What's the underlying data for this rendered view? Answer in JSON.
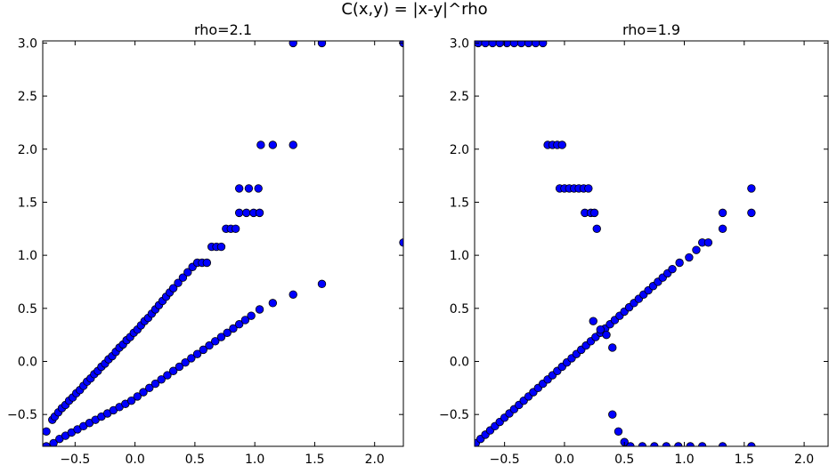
{
  "figure": {
    "suptitle": "C(x,y) = |x-y|^rho"
  },
  "colors": {
    "marker_fill": "#0000ff",
    "marker_edge": "#000000",
    "axes": "#000000",
    "background": "#ffffff"
  },
  "chart_data": [
    {
      "type": "scatter",
      "title": "rho=2.1",
      "xlabel": "",
      "ylabel": "",
      "xlim": [
        -0.77,
        2.24
      ],
      "ylim": [
        -0.8,
        3.02
      ],
      "xticks": [
        -0.5,
        0.0,
        0.5,
        1.0,
        1.5,
        2.0
      ],
      "xtick_labels": [
        "−0.5",
        "0.0",
        "0.5",
        "1.0",
        "1.5",
        "2.0"
      ],
      "yticks": [
        -0.5,
        0.0,
        0.5,
        1.0,
        1.5,
        2.0,
        2.5,
        3.0
      ],
      "ytick_labels": [
        "−0.5",
        "0.0",
        "0.5",
        "1.0",
        "1.5",
        "2.0",
        "2.5",
        "3.0"
      ],
      "grid": false,
      "series": [
        {
          "points": [
            [
              -0.74,
              -0.66
            ],
            [
              -0.69,
              -0.55
            ],
            [
              -0.67,
              -0.52
            ],
            [
              -0.64,
              -0.48
            ],
            [
              -0.61,
              -0.44
            ],
            [
              -0.58,
              -0.41
            ],
            [
              -0.55,
              -0.37
            ],
            [
              -0.52,
              -0.34
            ],
            [
              -0.49,
              -0.3
            ],
            [
              -0.46,
              -0.27
            ],
            [
              -0.43,
              -0.23
            ],
            [
              -0.4,
              -0.19
            ],
            [
              -0.37,
              -0.16
            ],
            [
              -0.34,
              -0.12
            ],
            [
              -0.31,
              -0.09
            ],
            [
              -0.28,
              -0.05
            ],
            [
              -0.25,
              -0.02
            ],
            [
              -0.22,
              0.02
            ],
            [
              -0.19,
              0.05
            ],
            [
              -0.16,
              0.09
            ],
            [
              -0.13,
              0.13
            ],
            [
              -0.1,
              0.16
            ],
            [
              -0.07,
              0.2
            ],
            [
              -0.04,
              0.23
            ],
            [
              -0.01,
              0.27
            ],
            [
              0.02,
              0.3
            ],
            [
              0.05,
              0.34
            ],
            [
              0.08,
              0.38
            ],
            [
              0.11,
              0.41
            ],
            [
              0.14,
              0.45
            ],
            [
              0.17,
              0.49
            ],
            [
              0.2,
              0.53
            ],
            [
              0.23,
              0.57
            ],
            [
              0.26,
              0.61
            ],
            [
              0.29,
              0.65
            ],
            [
              0.32,
              0.69
            ],
            [
              0.36,
              0.74
            ],
            [
              0.4,
              0.79
            ],
            [
              0.44,
              0.84
            ],
            [
              0.48,
              0.89
            ],
            [
              0.52,
              0.93
            ],
            [
              0.56,
              0.93
            ],
            [
              0.6,
              0.93
            ],
            [
              0.64,
              1.08
            ],
            [
              0.68,
              1.08
            ],
            [
              0.72,
              1.08
            ],
            [
              0.76,
              1.25
            ],
            [
              0.8,
              1.25
            ],
            [
              0.84,
              1.25
            ],
            [
              0.87,
              1.4
            ],
            [
              0.93,
              1.4
            ],
            [
              0.99,
              1.4
            ],
            [
              1.04,
              1.4
            ],
            [
              0.87,
              1.63
            ],
            [
              0.95,
              1.63
            ],
            [
              1.03,
              1.63
            ],
            [
              1.05,
              2.04
            ],
            [
              1.15,
              2.04
            ],
            [
              1.32,
              2.04
            ],
            [
              1.32,
              3.0
            ],
            [
              1.56,
              3.0
            ],
            [
              2.24,
              3.0
            ],
            [
              2.24,
              1.12
            ],
            [
              -0.74,
              -0.8
            ],
            [
              -0.68,
              -0.77
            ],
            [
              -0.63,
              -0.73
            ],
            [
              -0.58,
              -0.7
            ],
            [
              -0.53,
              -0.67
            ],
            [
              -0.48,
              -0.64
            ],
            [
              -0.43,
              -0.61
            ],
            [
              -0.38,
              -0.58
            ],
            [
              -0.33,
              -0.55
            ],
            [
              -0.28,
              -0.52
            ],
            [
              -0.23,
              -0.49
            ],
            [
              -0.18,
              -0.46
            ],
            [
              -0.13,
              -0.43
            ],
            [
              -0.08,
              -0.4
            ],
            [
              -0.03,
              -0.37
            ],
            [
              0.02,
              -0.33
            ],
            [
              0.07,
              -0.29
            ],
            [
              0.12,
              -0.25
            ],
            [
              0.17,
              -0.21
            ],
            [
              0.22,
              -0.17
            ],
            [
              0.27,
              -0.13
            ],
            [
              0.32,
              -0.09
            ],
            [
              0.37,
              -0.05
            ],
            [
              0.42,
              -0.01
            ],
            [
              0.47,
              0.03
            ],
            [
              0.52,
              0.07
            ],
            [
              0.57,
              0.11
            ],
            [
              0.62,
              0.15
            ],
            [
              0.67,
              0.19
            ],
            [
              0.72,
              0.23
            ],
            [
              0.77,
              0.27
            ],
            [
              0.82,
              0.31
            ],
            [
              0.87,
              0.35
            ],
            [
              0.92,
              0.39
            ],
            [
              0.97,
              0.43
            ],
            [
              1.04,
              0.49
            ],
            [
              1.15,
              0.55
            ],
            [
              1.32,
              0.63
            ],
            [
              1.56,
              0.73
            ]
          ]
        }
      ]
    },
    {
      "type": "scatter",
      "title": "rho=1.9",
      "xlabel": "",
      "ylabel": "",
      "xlim": [
        -0.75,
        2.2
      ],
      "ylim": [
        -0.8,
        3.02
      ],
      "xticks": [
        -0.5,
        0.0,
        0.5,
        1.0,
        1.5,
        2.0
      ],
      "xtick_labels": [
        "−0.5",
        "0.0",
        "0.5",
        "1.0",
        "1.5",
        "2.0"
      ],
      "yticks": [
        -0.5,
        0.0,
        0.5,
        1.0,
        1.5,
        2.0,
        2.5,
        3.0
      ],
      "ytick_labels": [
        "−0.5",
        "0.0",
        "0.5",
        "1.0",
        "1.5",
        "2.0",
        "2.5",
        "3.0"
      ],
      "grid": false,
      "series": [
        {
          "points": [
            [
              -0.74,
              -0.77
            ],
            [
              -0.7,
              -0.73
            ],
            [
              -0.66,
              -0.69
            ],
            [
              -0.62,
              -0.65
            ],
            [
              -0.58,
              -0.61
            ],
            [
              -0.54,
              -0.57
            ],
            [
              -0.5,
              -0.53
            ],
            [
              -0.46,
              -0.49
            ],
            [
              -0.42,
              -0.45
            ],
            [
              -0.38,
              -0.41
            ],
            [
              -0.34,
              -0.37
            ],
            [
              -0.3,
              -0.33
            ],
            [
              -0.26,
              -0.29
            ],
            [
              -0.22,
              -0.25
            ],
            [
              -0.18,
              -0.21
            ],
            [
              -0.14,
              -0.17
            ],
            [
              -0.1,
              -0.13
            ],
            [
              -0.06,
              -0.09
            ],
            [
              -0.02,
              -0.05
            ],
            [
              0.02,
              -0.01
            ],
            [
              0.06,
              0.03
            ],
            [
              0.1,
              0.07
            ],
            [
              0.14,
              0.11
            ],
            [
              0.18,
              0.15
            ],
            [
              0.22,
              0.19
            ],
            [
              0.26,
              0.23
            ],
            [
              0.3,
              0.27
            ],
            [
              0.34,
              0.31
            ],
            [
              0.38,
              0.35
            ],
            [
              0.42,
              0.39
            ],
            [
              0.46,
              0.43
            ],
            [
              0.5,
              0.47
            ],
            [
              0.54,
              0.51
            ],
            [
              0.58,
              0.55
            ],
            [
              0.62,
              0.59
            ],
            [
              0.66,
              0.63
            ],
            [
              0.7,
              0.67
            ],
            [
              0.74,
              0.71
            ],
            [
              0.78,
              0.75
            ],
            [
              0.82,
              0.79
            ],
            [
              0.86,
              0.83
            ],
            [
              0.9,
              0.87
            ],
            [
              0.96,
              0.93
            ],
            [
              1.04,
              0.98
            ],
            [
              1.1,
              1.05
            ],
            [
              1.15,
              1.12
            ],
            [
              1.2,
              1.12
            ],
            [
              1.32,
              1.25
            ],
            [
              1.32,
              1.4
            ],
            [
              1.56,
              1.4
            ],
            [
              1.56,
              1.63
            ],
            [
              0.24,
              0.38
            ],
            [
              0.3,
              0.3
            ],
            [
              0.35,
              0.25
            ],
            [
              0.4,
              0.13
            ],
            [
              0.4,
              -0.5
            ],
            [
              0.45,
              -0.66
            ],
            [
              0.5,
              -0.76
            ],
            [
              0.55,
              -0.8
            ],
            [
              0.65,
              -0.8
            ],
            [
              0.75,
              -0.8
            ],
            [
              0.85,
              -0.8
            ],
            [
              0.95,
              -0.8
            ],
            [
              1.05,
              -0.8
            ],
            [
              1.15,
              -0.8
            ],
            [
              1.32,
              -0.8
            ],
            [
              1.56,
              -0.8
            ],
            [
              -0.72,
              3.0
            ],
            [
              -0.66,
              3.0
            ],
            [
              -0.6,
              3.0
            ],
            [
              -0.54,
              3.0
            ],
            [
              -0.48,
              3.0
            ],
            [
              -0.42,
              3.0
            ],
            [
              -0.36,
              3.0
            ],
            [
              -0.3,
              3.0
            ],
            [
              -0.24,
              3.0
            ],
            [
              -0.18,
              3.0
            ],
            [
              -0.14,
              2.04
            ],
            [
              -0.1,
              2.04
            ],
            [
              -0.06,
              2.04
            ],
            [
              -0.02,
              2.04
            ],
            [
              -0.04,
              1.63
            ],
            [
              0.0,
              1.63
            ],
            [
              0.04,
              1.63
            ],
            [
              0.08,
              1.63
            ],
            [
              0.12,
              1.63
            ],
            [
              0.16,
              1.63
            ],
            [
              0.2,
              1.63
            ],
            [
              0.17,
              1.4
            ],
            [
              0.22,
              1.4
            ],
            [
              0.25,
              1.4
            ],
            [
              0.27,
              1.25
            ]
          ]
        }
      ]
    }
  ]
}
